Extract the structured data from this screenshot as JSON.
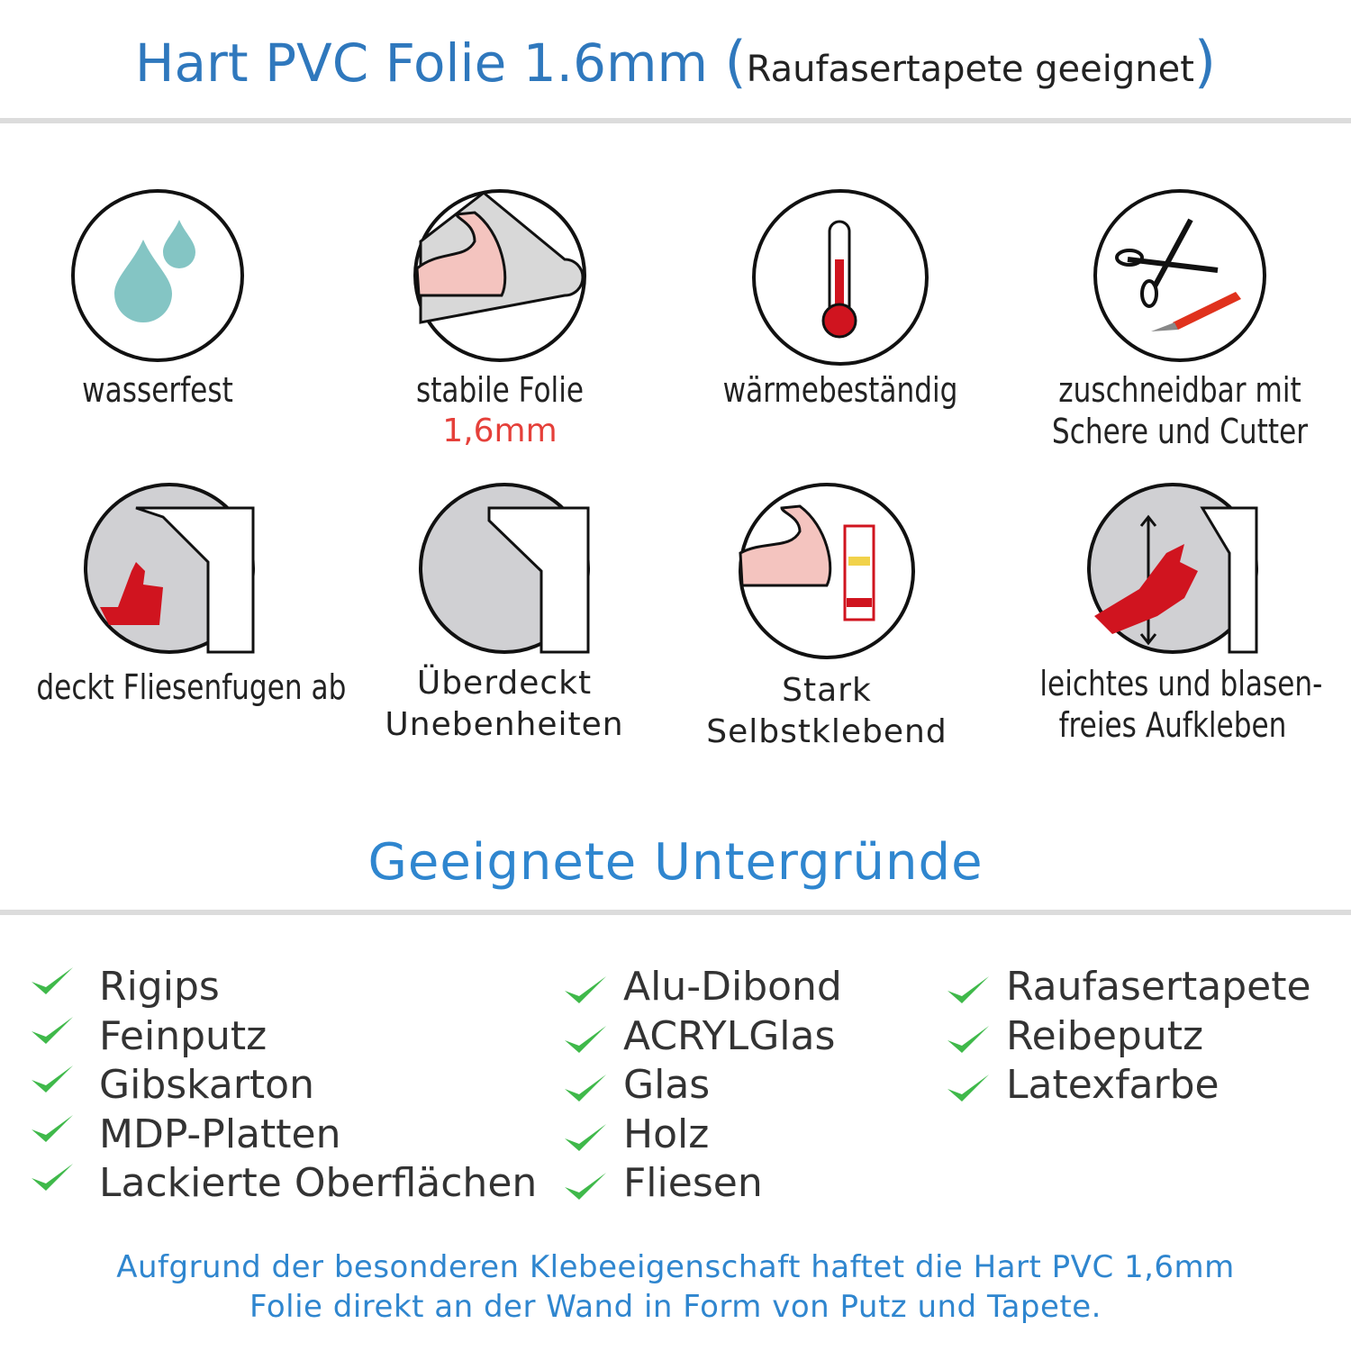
{
  "header": {
    "title": "Hart PVC Folie 1.6mm",
    "open_paren": "(",
    "subtitle": "Raufasertapete geeignet",
    "close_paren": ")"
  },
  "features": [
    {
      "icon": "water-drops-icon",
      "lines": [
        "wasserfest"
      ]
    },
    {
      "icon": "strong-film-icon",
      "lines": [
        "stabile Folie"
      ],
      "highlight": "1,6mm"
    },
    {
      "icon": "thermometer-icon",
      "lines": [
        "wärmebeständig"
      ]
    },
    {
      "icon": "scissors-cutter-icon",
      "lines": [
        "zuschneidbar mit",
        "Schere und Cutter"
      ]
    },
    {
      "icon": "thumbs-up-tiles-icon",
      "lines": [
        "deckt Fliesenfugen ab"
      ]
    },
    {
      "icon": "film-corner-icon",
      "lines": [
        "Überdeckt",
        "Unebenheiten"
      ]
    },
    {
      "icon": "strong-glue-icon",
      "lines": [
        "Stark",
        "Selbstklebend"
      ]
    },
    {
      "icon": "hand-smoothing-icon",
      "lines": [
        "leichtes und blasen-",
        "freies Aufkleben"
      ]
    }
  ],
  "section_title": "Geeignete Untergründe",
  "surfaces": [
    [
      "Rigips",
      "Feinputz",
      "Gibskarton",
      "MDP-Platten",
      "Lackierte Oberflächen"
    ],
    [
      "Alu-Dibond",
      "ACRYLGlas",
      "Glas",
      "Holz",
      "Fliesen"
    ],
    [
      "Raufasertapete",
      "Reibeputz",
      "Latexfarbe"
    ]
  ],
  "footer": [
    "Aufgrund der besonderen Klebeeigenschaft haftet die Hart PVC 1,6mm",
    "Folie direkt an der Wand in Form von Putz und Tapete."
  ],
  "colors": {
    "title_blue": "#2f78bd",
    "section_blue": "#2f86cf",
    "check_green": "#3fb94a",
    "accent_red": "#e5403a",
    "icon_red": "#d0141f"
  }
}
